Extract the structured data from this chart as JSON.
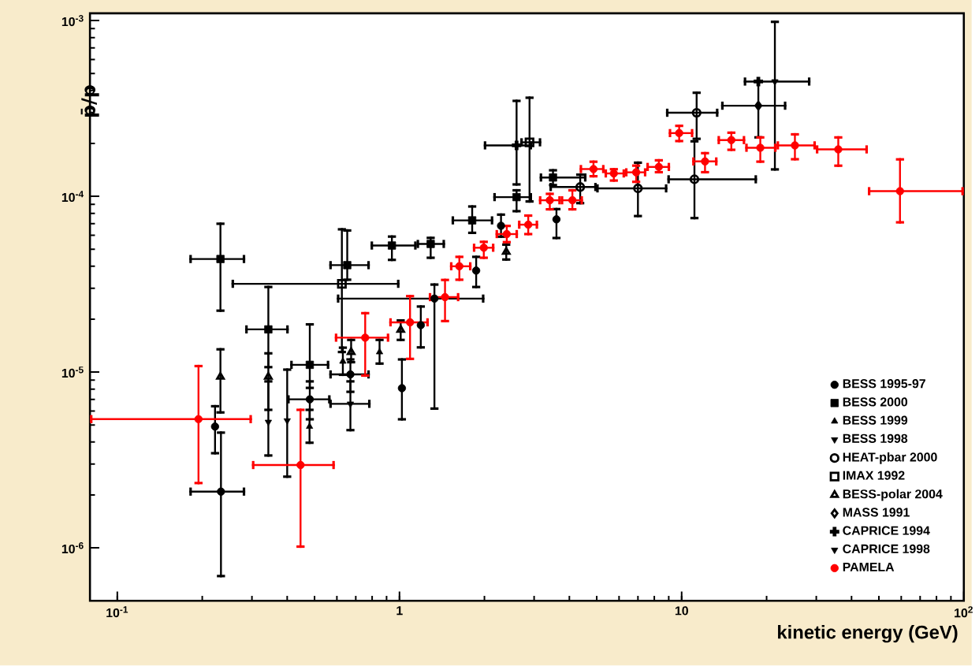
{
  "chart_data": {
    "type": "scatter",
    "xlabel": "kinetic energy (GeV)",
    "ylabel": "p̄/p",
    "log": "xy",
    "legend": "bottom right",
    "xlim": [
      0.08,
      100
    ],
    "ylim": [
      5e-07,
      0.0011
    ],
    "xticks": [
      {
        "value": 0.1,
        "label": "10$^{-1}$"
      },
      1,
      10,
      {
        "value": 100,
        "label": "10$^{2}$"
      }
    ],
    "yticks": [
      {
        "value": 1e-06,
        "label": "10$^{-6}$"
      },
      {
        "value": 1e-05,
        "label": "10$^{-5}$"
      },
      {
        "value": 0.0001,
        "label": "10$^{-4}$"
      },
      {
        "value": 0.001,
        "label": "10$^{-3}$"
      }
    ],
    "series": [
      {
        "name": "BESS 1995-97",
        "color": "#000000",
        "marker": "circle",
        "x": [
          0.233,
          0.222,
          0.481,
          0.67,
          1.02,
          1.19,
          1.33,
          1.87,
          2.29,
          3.6
        ],
        "values": [
          2.09e-06,
          4.9e-06,
          7e-06,
          9.7e-06,
          8.1e-06,
          1.85e-05,
          2.62e-05,
          3.78e-05,
          6.8e-05,
          7.4e-05
        ],
        "errors": [
          [
            6.8e-07,
            4.6e-06
          ],
          [
            3.4e-06,
            6.5e-06
          ],
          [
            5.3e-06,
            9e-06
          ],
          [
            7.6e-06,
            1.2e-05
          ],
          [
            5.3e-06,
            1.2e-05
          ],
          [
            1.36e-05,
            2.4e-05
          ],
          [
            6.1e-06,
            3.2e-05
          ],
          [
            3e-05,
            4.6e-05
          ],
          [
            5.8e-05,
            8e-05
          ],
          [
            5.7e-05,
            8.6e-05
          ]
        ],
        "xerrors": [
          [
            0.18,
            0.284
          ],
          null,
          [
            0.4,
            0.57
          ],
          [
            0.564,
            0.785
          ],
          null,
          null,
          [
            0.6,
            2.0
          ],
          null,
          null,
          null
        ]
      },
      {
        "name": "BESS 2000",
        "color": "#000000",
        "marker": "square",
        "x": [
          0.232,
          0.343,
          0.481,
          0.653,
          0.94,
          1.29,
          1.81,
          2.6,
          3.5
        ],
        "values": [
          4.4e-05,
          1.75e-05,
          1.1e-05,
          4.06e-05,
          5.25e-05,
          5.36e-05,
          7.3e-05,
          9.9e-05,
          0.000128
        ],
        "errors": [
          [
            2.2e-05,
            7.1e-05
          ],
          [
            1.05e-05,
            3.1e-05
          ],
          [
            8e-06,
            1.9e-05
          ],
          [
            3.3e-05,
            6.5e-05
          ],
          [
            4.28e-05,
            6e-05
          ],
          [
            4.4e-05,
            5.9e-05
          ],
          [
            6.1e-05,
            8.9e-05
          ],
          [
            8.1e-05,
            0.00011
          ],
          [
            0.000114,
            0.000143
          ]
        ],
        "xerrors": [
          [
            0.18,
            0.284
          ],
          [
            0.284,
            0.405
          ],
          [
            0.41,
            0.564
          ],
          [
            0.564,
            0.785
          ],
          [
            0.79,
            1.15
          ],
          [
            1.15,
            1.45
          ],
          [
            1.53,
            2.15
          ],
          [
            2.15,
            2.95
          ],
          [
            3.14,
            4.6
          ]
        ]
      },
      {
        "name": "BESS 1999",
        "color": "#000000",
        "marker": "triangle",
        "x": [
          0.48,
          0.63,
          0.85
        ],
        "values": [
          4.9e-06,
          1.15e-05,
          1.3e-05
        ],
        "errors": [
          [
            3.9e-06,
            6.2e-06
          ],
          [
            9.5e-06,
            1.4e-05
          ],
          [
            1.1e-05,
            1.55e-05
          ]
        ]
      },
      {
        "name": "BESS 1998",
        "color": "#000000",
        "marker": "triangle-down",
        "x": [
          0.343,
          0.4
        ],
        "values": [
          5.2e-06,
          5.3e-06
        ],
        "errors": [
          [
            3.3e-06,
            9e-06
          ],
          [
            2.5e-06,
            1.05e-05
          ]
        ]
      },
      {
        "name": "HEAT-pbar 2000",
        "color": "#000000",
        "marker": "circle-open",
        "x": [
          4.37,
          7.0,
          11.1,
          11.3
        ],
        "values": [
          0.000113,
          0.000111,
          0.000125,
          0.000299
        ],
        "errors": [
          [
            9e-05,
            0.000135
          ],
          [
            7.6e-05,
            0.000158
          ],
          [
            7.4e-05,
            0.000209
          ],
          [
            0.000209,
            0.000395
          ]
        ],
        "xerrors": [
          [
            3.4,
            5.0
          ],
          [
            4.98,
            8.9
          ],
          [
            8.9,
            18.5
          ],
          [
            8.8,
            13.5
          ]
        ]
      },
      {
        "name": "IMAX 1992",
        "color": "#000000",
        "marker": "square-open",
        "x": [
          0.625,
          2.89
        ],
        "values": [
          3.18e-05,
          0.000203
        ],
        "errors": [
          [
            1.28e-05,
            6.6e-05
          ],
          [
            9.2e-05,
            0.00037
          ]
        ],
        "xerrors": [
          [
            0.254,
            1.0
          ],
          [
            2.68,
            3.18
          ]
        ]
      },
      {
        "name": "BESS-polar 2004",
        "color": "#000000",
        "marker": "triangle-open",
        "x": [
          0.232,
          0.343,
          0.674,
          1.01,
          2.39
        ],
        "values": [
          9.4e-06,
          9.4e-06,
          1.3e-05,
          1.74e-05,
          4.83e-05
        ],
        "errors": [
          [
            5.8e-06,
            1.37e-05
          ],
          [
            6e-06,
            1.3e-05
          ],
          [
            1.12e-05,
            1.55e-05
          ],
          [
            1.5e-05,
            2e-05
          ],
          [
            4.3e-05,
            5.4e-05
          ]
        ]
      },
      {
        "name": "MASS 1991",
        "color": "#000000",
        "marker": "diamond-open",
        "x": [
          18.7
        ],
        "values": [
          0.000328
        ],
        "errors": [
          [
            0.000213,
            0.00046
          ]
        ],
        "xerrors": [
          [
            13.8,
            23.5
          ]
        ]
      },
      {
        "name": "CAPRICE 1994",
        "color": "#000000",
        "marker": "cross",
        "x": [
          2.6,
          18.7
        ],
        "values": [
          0.000195,
          0.00045
        ],
        "errors": [
          [
            0.000115,
            0.000355
          ],
          null
        ],
        "xerrors": [
          [
            1.99,
            2.95
          ],
          null
        ]
      },
      {
        "name": "CAPRICE 1998",
        "color": "#000000",
        "marker": "triangle-down",
        "x": [
          0.67,
          21.4
        ],
        "values": [
          6.6e-06,
          0.00045
        ],
        "errors": [
          [
            4.6e-06,
            9e-06
          ],
          [
            0.00014,
            0.001
          ]
        ],
        "xerrors": [
          [
            0.564,
            0.79
          ],
          [
            16.6,
            28.6
          ]
        ]
      },
      {
        "name": "PAMELA",
        "color": "#ff0000",
        "marker": "circle",
        "x": [
          0.194,
          0.446,
          0.756,
          1.09,
          1.45,
          1.63,
          1.99,
          2.4,
          2.86,
          3.41,
          4.1,
          4.87,
          5.75,
          6.9,
          8.3,
          9.8,
          12.1,
          15.0,
          19.0,
          25.2,
          35.9,
          59.4
        ],
        "values": [
          5.4e-06,
          2.96e-06,
          1.57e-05,
          1.92e-05,
          2.67e-05,
          4e-05,
          5.1e-05,
          6.1e-05,
          6.9e-05,
          9.5e-05,
          9.5e-05,
          0.000143,
          0.000135,
          0.000137,
          0.000147,
          0.000229,
          0.000158,
          0.000209,
          0.000189,
          0.000195,
          0.000185,
          0.000107
        ],
        "errors": [
          [
            2.3e-06,
            1.1e-05
          ],
          [
            1e-06,
            6.2e-06
          ],
          [
            9.4e-06,
            2.2e-05
          ],
          [
            1.17e-05,
            2.75e-05
          ],
          [
            1.92e-05,
            3.4e-05
          ],
          [
            3.3e-05,
            4.6e-05
          ],
          [
            4.4e-05,
            5.6e-05
          ],
          [
            5.4e-05,
            6.9e-05
          ],
          [
            6e-05,
            7.9e-05
          ],
          [
            8.3e-05,
            0.000105
          ],
          [
            8.3e-05,
            0.00011
          ],
          [
            0.000128,
            0.00016
          ],
          [
            0.000121,
            0.000145
          ],
          [
            0.000119,
            0.000152
          ],
          [
            0.000135,
            0.000163
          ],
          [
            0.000203,
            0.000256
          ],
          [
            0.000135,
            0.000179
          ],
          [
            0.000181,
            0.000234
          ],
          [
            0.000155,
            0.00022
          ],
          [
            0.00016,
            0.000229
          ],
          [
            0.000147,
            0.00022
          ],
          [
            7e-05,
            0.000165
          ]
        ],
        "xerrors": [
          [
            0.08,
            0.3
          ],
          [
            0.3,
            0.59
          ],
          [
            0.59,
            0.92
          ],
          [
            0.92,
            1.27
          ],
          [
            1.27,
            1.63
          ],
          [
            1.51,
            1.8
          ],
          [
            1.82,
            2.17
          ],
          [
            2.19,
            2.63
          ],
          [
            2.63,
            3.1
          ],
          [
            3.12,
            3.73
          ],
          [
            3.73,
            4.47
          ],
          [
            4.35,
            5.33
          ],
          [
            5.33,
            6.3
          ],
          [
            6.3,
            7.5
          ],
          [
            7.5,
            9.1
          ],
          [
            9.0,
            11.0
          ],
          [
            10.9,
            13.4
          ],
          [
            13.4,
            16.8
          ],
          [
            16.8,
            21.7
          ],
          [
            21.7,
            29.9
          ],
          [
            29.9,
            45.7
          ],
          [
            45.7,
            100
          ]
        ]
      }
    ]
  }
}
